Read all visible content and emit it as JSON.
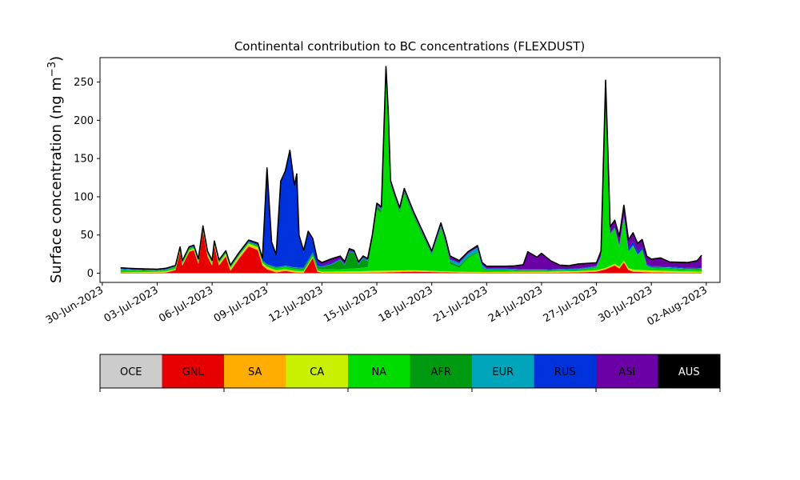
{
  "chart_data": {
    "type": "area",
    "title": "Continental contribution to BC concentrations (FLEXDUST)",
    "ylabel_main": "Surface concentration (ng m",
    "ylabel_sup": "−3",
    "ylabel_close": ")",
    "xlabel": "",
    "ylim": [
      -12,
      282
    ],
    "y_ticks": [
      "0",
      "50",
      "100",
      "150",
      "200",
      "250"
    ],
    "x_ticks": [
      "30-Jun-2023",
      "03-Jul-2023",
      "06-Jul-2023",
      "09-Jul-2023",
      "12-Jul-2023",
      "15-Jul-2023",
      "18-Jul-2023",
      "21-Jul-2023",
      "24-Jul-2023",
      "27-Jul-2023",
      "30-Jul-2023",
      "02-Aug-2023"
    ],
    "x_range": [
      "2023-06-29T21:00",
      "2023-08-02T18:00"
    ],
    "stack_order": [
      "OCE",
      "GNL",
      "SA",
      "CA",
      "NA",
      "AFR",
      "EUR",
      "RUS",
      "ASI",
      "AUS"
    ],
    "colors": {
      "OCE": "#cccccc",
      "GNL": "#e60000",
      "SA": "#ffad00",
      "CA": "#c8f000",
      "NA": "#00dc00",
      "AFR": "#009a10",
      "EUR": "#00a5bc",
      "RUS": "#0032dc",
      "ASI": "#6a00a6",
      "AUS": "#000000"
    },
    "series": [
      {
        "name": "GNL",
        "points": [
          [
            "2023-07-01",
            1
          ],
          [
            "2023-07-02",
            0.5
          ],
          [
            "2023-07-03",
            0.5
          ],
          [
            "2023-07-03T12:00",
            1
          ],
          [
            "2023-07-04",
            4
          ],
          [
            "2023-07-04T06:00",
            28
          ],
          [
            "2023-07-04T09:00",
            10
          ],
          [
            "2023-07-04T18:00",
            28
          ],
          [
            "2023-07-05",
            30
          ],
          [
            "2023-07-05T06:00",
            12
          ],
          [
            "2023-07-05T12:00",
            55
          ],
          [
            "2023-07-05T18:00",
            22
          ],
          [
            "2023-07-06",
            10
          ],
          [
            "2023-07-06T03:00",
            35
          ],
          [
            "2023-07-06T09:00",
            10
          ],
          [
            "2023-07-06T18:00",
            22
          ],
          [
            "2023-07-07",
            3
          ],
          [
            "2023-07-07T12:00",
            20
          ],
          [
            "2023-07-08",
            35
          ],
          [
            "2023-07-08T12:00",
            30
          ],
          [
            "2023-07-08T18:00",
            10
          ],
          [
            "2023-07-09",
            5
          ],
          [
            "2023-07-09T12:00",
            1
          ],
          [
            "2023-07-10",
            3
          ],
          [
            "2023-07-10T12:00",
            1
          ],
          [
            "2023-07-11",
            0.5
          ],
          [
            "2023-07-11T12:00",
            20
          ],
          [
            "2023-07-11T18:00",
            2
          ],
          [
            "2023-07-12",
            0.5
          ],
          [
            "2023-07-14",
            0.5
          ],
          [
            "2023-07-15T12:00",
            1
          ],
          [
            "2023-07-17",
            2
          ],
          [
            "2023-07-19",
            1
          ],
          [
            "2023-07-21",
            0.5
          ],
          [
            "2023-07-24",
            0.5
          ],
          [
            "2023-07-26",
            1
          ],
          [
            "2023-07-27",
            2
          ],
          [
            "2023-07-27T12:00",
            5
          ],
          [
            "2023-07-28",
            10
          ],
          [
            "2023-07-28T06:00",
            6
          ],
          [
            "2023-07-28T12:00",
            14
          ],
          [
            "2023-07-28T18:00",
            4
          ],
          [
            "2023-07-29",
            2
          ],
          [
            "2023-07-30",
            1
          ],
          [
            "2023-08-01T18:00",
            0.5
          ]
        ]
      },
      {
        "name": "SA",
        "points": [
          [
            "2023-07-01",
            0
          ],
          [
            "2023-07-05T12:00",
            1
          ],
          [
            "2023-07-08T12:00",
            2
          ],
          [
            "2023-07-12",
            0.5
          ],
          [
            "2023-07-16",
            1
          ],
          [
            "2023-07-20",
            0.5
          ],
          [
            "2023-07-28",
            1
          ],
          [
            "2023-08-01T18:00",
            0.5
          ]
        ]
      },
      {
        "name": "CA",
        "points": [
          [
            "2023-07-01",
            0.5
          ],
          [
            "2023-07-04",
            1
          ],
          [
            "2023-07-08",
            2
          ],
          [
            "2023-07-10",
            1
          ],
          [
            "2023-07-12",
            1
          ],
          [
            "2023-07-15",
            1.5
          ],
          [
            "2023-07-17",
            1
          ],
          [
            "2023-07-20",
            0.5
          ],
          [
            "2023-07-27T12:00",
            1
          ],
          [
            "2023-07-29",
            2
          ],
          [
            "2023-08-01T18:00",
            1
          ]
        ]
      },
      {
        "name": "NA",
        "points": [
          [
            "2023-07-01",
            3
          ],
          [
            "2023-07-02",
            2
          ],
          [
            "2023-07-03",
            1
          ],
          [
            "2023-07-04",
            2
          ],
          [
            "2023-07-08",
            1
          ],
          [
            "2023-07-09",
            2
          ],
          [
            "2023-07-10",
            3
          ],
          [
            "2023-07-11",
            2
          ],
          [
            "2023-07-12",
            3
          ],
          [
            "2023-07-13",
            3
          ],
          [
            "2023-07-14",
            4
          ],
          [
            "2023-07-14T12:00",
            5
          ],
          [
            "2023-07-14T18:00",
            40
          ],
          [
            "2023-07-15",
            80
          ],
          [
            "2023-07-15T06:00",
            75
          ],
          [
            "2023-07-15T12:00",
            258
          ],
          [
            "2023-07-15T15:00",
            200
          ],
          [
            "2023-07-15T18:00",
            110
          ],
          [
            "2023-07-16",
            92
          ],
          [
            "2023-07-16T06:00",
            75
          ],
          [
            "2023-07-16T12:00",
            100
          ],
          [
            "2023-07-16T18:00",
            85
          ],
          [
            "2023-07-17",
            70
          ],
          [
            "2023-07-17T12:00",
            45
          ],
          [
            "2023-07-18",
            20
          ],
          [
            "2023-07-18T12:00",
            55
          ],
          [
            "2023-07-18T18:00",
            35
          ],
          [
            "2023-07-19",
            10
          ],
          [
            "2023-07-19T12:00",
            5
          ],
          [
            "2023-07-20",
            18
          ],
          [
            "2023-07-20T12:00",
            25
          ],
          [
            "2023-07-20T18:00",
            5
          ],
          [
            "2023-07-21",
            2
          ],
          [
            "2023-07-22",
            2
          ],
          [
            "2023-07-23",
            1
          ],
          [
            "2023-07-25",
            1
          ],
          [
            "2023-07-26",
            1
          ],
          [
            "2023-07-26T12:00",
            2
          ],
          [
            "2023-07-27",
            3
          ],
          [
            "2023-07-27T06:00",
            15
          ],
          [
            "2023-07-27T12:00",
            235
          ],
          [
            "2023-07-27T15:00",
            140
          ],
          [
            "2023-07-27T18:00",
            40
          ],
          [
            "2023-07-28",
            45
          ],
          [
            "2023-07-28T06:00",
            25
          ],
          [
            "2023-07-28T12:00",
            55
          ],
          [
            "2023-07-28T18:00",
            20
          ],
          [
            "2023-07-29",
            30
          ],
          [
            "2023-07-29T06:00",
            18
          ],
          [
            "2023-07-29T12:00",
            25
          ],
          [
            "2023-07-29T18:00",
            5
          ],
          [
            "2023-07-30",
            3
          ],
          [
            "2023-07-31",
            3
          ],
          [
            "2023-08-01",
            2
          ],
          [
            "2023-08-01T18:00",
            3
          ]
        ]
      },
      {
        "name": "AFR",
        "points": [
          [
            "2023-07-01",
            0.5
          ],
          [
            "2023-07-03",
            0.5
          ],
          [
            "2023-07-07",
            1
          ],
          [
            "2023-07-09",
            1
          ],
          [
            "2023-07-10",
            1
          ],
          [
            "2023-07-11",
            2
          ],
          [
            "2023-07-12",
            3
          ],
          [
            "2023-07-12T12:00",
            6
          ],
          [
            "2023-07-13",
            12
          ],
          [
            "2023-07-13T06:00",
            5
          ],
          [
            "2023-07-13T12:00",
            22
          ],
          [
            "2023-07-13T18:00",
            20
          ],
          [
            "2023-07-14",
            5
          ],
          [
            "2023-07-14T06:00",
            12
          ],
          [
            "2023-07-14T12:00",
            8
          ],
          [
            "2023-07-14T18:00",
            3
          ],
          [
            "2023-07-15",
            5
          ],
          [
            "2023-07-16",
            3
          ],
          [
            "2023-07-17",
            3
          ],
          [
            "2023-07-18",
            2
          ],
          [
            "2023-07-19",
            3
          ],
          [
            "2023-07-20",
            2
          ],
          [
            "2023-07-21",
            1
          ],
          [
            "2023-07-24",
            1
          ],
          [
            "2023-07-27",
            1
          ],
          [
            "2023-07-29",
            1
          ],
          [
            "2023-07-31",
            1
          ],
          [
            "2023-08-01T18:00",
            1
          ]
        ]
      },
      {
        "name": "EUR",
        "points": [
          [
            "2023-07-01",
            0.5
          ],
          [
            "2023-07-12",
            0.5
          ],
          [
            "2023-07-16",
            1
          ],
          [
            "2023-07-18",
            1
          ],
          [
            "2023-07-20T12:00",
            5
          ],
          [
            "2023-07-21",
            1
          ],
          [
            "2023-07-24",
            0.5
          ],
          [
            "2023-07-27",
            1
          ],
          [
            "2023-07-29",
            1
          ],
          [
            "2023-08-01T18:00",
            0.5
          ]
        ]
      },
      {
        "name": "RUS",
        "points": [
          [
            "2023-07-01",
            0.5
          ],
          [
            "2023-07-07",
            0.5
          ],
          [
            "2023-07-08",
            1
          ],
          [
            "2023-07-08T18:00",
            2
          ],
          [
            "2023-07-09",
            125
          ],
          [
            "2023-07-09T06:00",
            30
          ],
          [
            "2023-07-09T12:00",
            15
          ],
          [
            "2023-07-09T18:00",
            110
          ],
          [
            "2023-07-10",
            122
          ],
          [
            "2023-07-10T06:00",
            150
          ],
          [
            "2023-07-10T12:00",
            105
          ],
          [
            "2023-07-10T15:00",
            120
          ],
          [
            "2023-07-10T18:00",
            40
          ],
          [
            "2023-07-11",
            20
          ],
          [
            "2023-07-11T06:00",
            35
          ],
          [
            "2023-07-11T12:00",
            15
          ],
          [
            "2023-07-11T18:00",
            5
          ],
          [
            "2023-07-12",
            2
          ],
          [
            "2023-07-13",
            1
          ],
          [
            "2023-07-15",
            1
          ],
          [
            "2023-07-18",
            1
          ],
          [
            "2023-07-20",
            0.5
          ],
          [
            "2023-07-26",
            0.5
          ],
          [
            "2023-07-28",
            1
          ],
          [
            "2023-07-28T18:00",
            3
          ],
          [
            "2023-07-29",
            5
          ],
          [
            "2023-07-29T12:00",
            3
          ],
          [
            "2023-07-30",
            1
          ],
          [
            "2023-08-01T18:00",
            1
          ]
        ]
      },
      {
        "name": "ASI",
        "points": [
          [
            "2023-07-01",
            0.5
          ],
          [
            "2023-07-09",
            0.5
          ],
          [
            "2023-07-12",
            3
          ],
          [
            "2023-07-12T12:00",
            5
          ],
          [
            "2023-07-13",
            3
          ],
          [
            "2023-07-14",
            1
          ],
          [
            "2023-07-18",
            1
          ],
          [
            "2023-07-19",
            3
          ],
          [
            "2023-07-19T12:00",
            2
          ],
          [
            "2023-07-20",
            1
          ],
          [
            "2023-07-21",
            2
          ],
          [
            "2023-07-22",
            2
          ],
          [
            "2023-07-22T12:00",
            3
          ],
          [
            "2023-07-23",
            5
          ],
          [
            "2023-07-23T06:00",
            22
          ],
          [
            "2023-07-23T18:00",
            15
          ],
          [
            "2023-07-24",
            20
          ],
          [
            "2023-07-24T12:00",
            10
          ],
          [
            "2023-07-25",
            4
          ],
          [
            "2023-07-25T12:00",
            3
          ],
          [
            "2023-07-26",
            5
          ],
          [
            "2023-07-26T12:00",
            4
          ],
          [
            "2023-07-27",
            3
          ],
          [
            "2023-07-28",
            8
          ],
          [
            "2023-07-28T12:00",
            12
          ],
          [
            "2023-07-29",
            10
          ],
          [
            "2023-07-30",
            8
          ],
          [
            "2023-07-30T12:00",
            10
          ],
          [
            "2023-07-31",
            5
          ],
          [
            "2023-08-01",
            6
          ],
          [
            "2023-08-01T12:00",
            8
          ],
          [
            "2023-08-01T18:00",
            15
          ]
        ]
      },
      {
        "name": "AUS",
        "points": [
          [
            "2023-07-01",
            0.5
          ],
          [
            "2023-07-15",
            0.5
          ],
          [
            "2023-07-15T12:00",
            2
          ],
          [
            "2023-07-16",
            1
          ],
          [
            "2023-07-27",
            1
          ],
          [
            "2023-07-27T12:00",
            2
          ],
          [
            "2023-07-28",
            1
          ],
          [
            "2023-08-01T18:00",
            1
          ]
        ]
      }
    ],
    "legend": [
      {
        "name": "OCE",
        "text_color": "#000000"
      },
      {
        "name": "GNL",
        "text_color": "#000000"
      },
      {
        "name": "SA",
        "text_color": "#000000"
      },
      {
        "name": "CA",
        "text_color": "#000000"
      },
      {
        "name": "NA",
        "text_color": "#000000"
      },
      {
        "name": "AFR",
        "text_color": "#000000"
      },
      {
        "name": "EUR",
        "text_color": "#000000"
      },
      {
        "name": "RUS",
        "text_color": "#000000"
      },
      {
        "name": "ASI",
        "text_color": "#000000"
      },
      {
        "name": "AUS",
        "text_color": "#ffffff"
      }
    ],
    "grid": false,
    "legend_placement": "bottom"
  }
}
